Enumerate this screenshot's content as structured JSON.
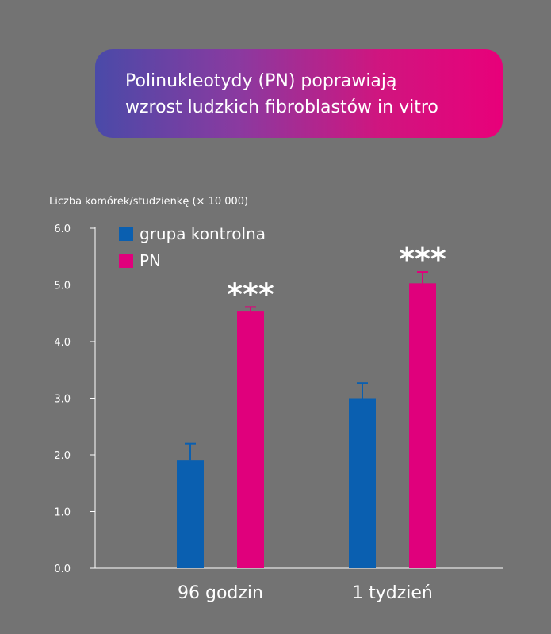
{
  "title": {
    "line1": "Polinukleotydy (PN) poprawiają",
    "line2": "wzrost ludzkich fibroblastów in vitro"
  },
  "colors": {
    "background": "#737373",
    "control": "#0a5fb0",
    "pn": "#e0007c",
    "title_gradient_start": "#4a4aa8",
    "title_gradient_end": "#e8007a"
  },
  "chart_data": {
    "type": "bar",
    "ylabel": "Liczba komórek/studzienkę (× 10 000)",
    "xlabel": "",
    "ylim": [
      0,
      6
    ],
    "yticks": [
      "0.0",
      "1.0",
      "2.0",
      "3.0",
      "4.0",
      "5.0",
      "6.0"
    ],
    "categories": [
      "96 godzin",
      "1 tydzień"
    ],
    "series": [
      {
        "name": "grupa kontrolna",
        "color": "#0a5fb0",
        "values": [
          1.9,
          3.0
        ],
        "errors": [
          0.3,
          0.27
        ]
      },
      {
        "name": "PN",
        "color": "#e0007c",
        "values": [
          4.53,
          5.03
        ],
        "errors": [
          0.08,
          0.2
        ],
        "annotations": [
          "***",
          "***"
        ]
      }
    ],
    "legend": "top-left",
    "grid": false
  }
}
